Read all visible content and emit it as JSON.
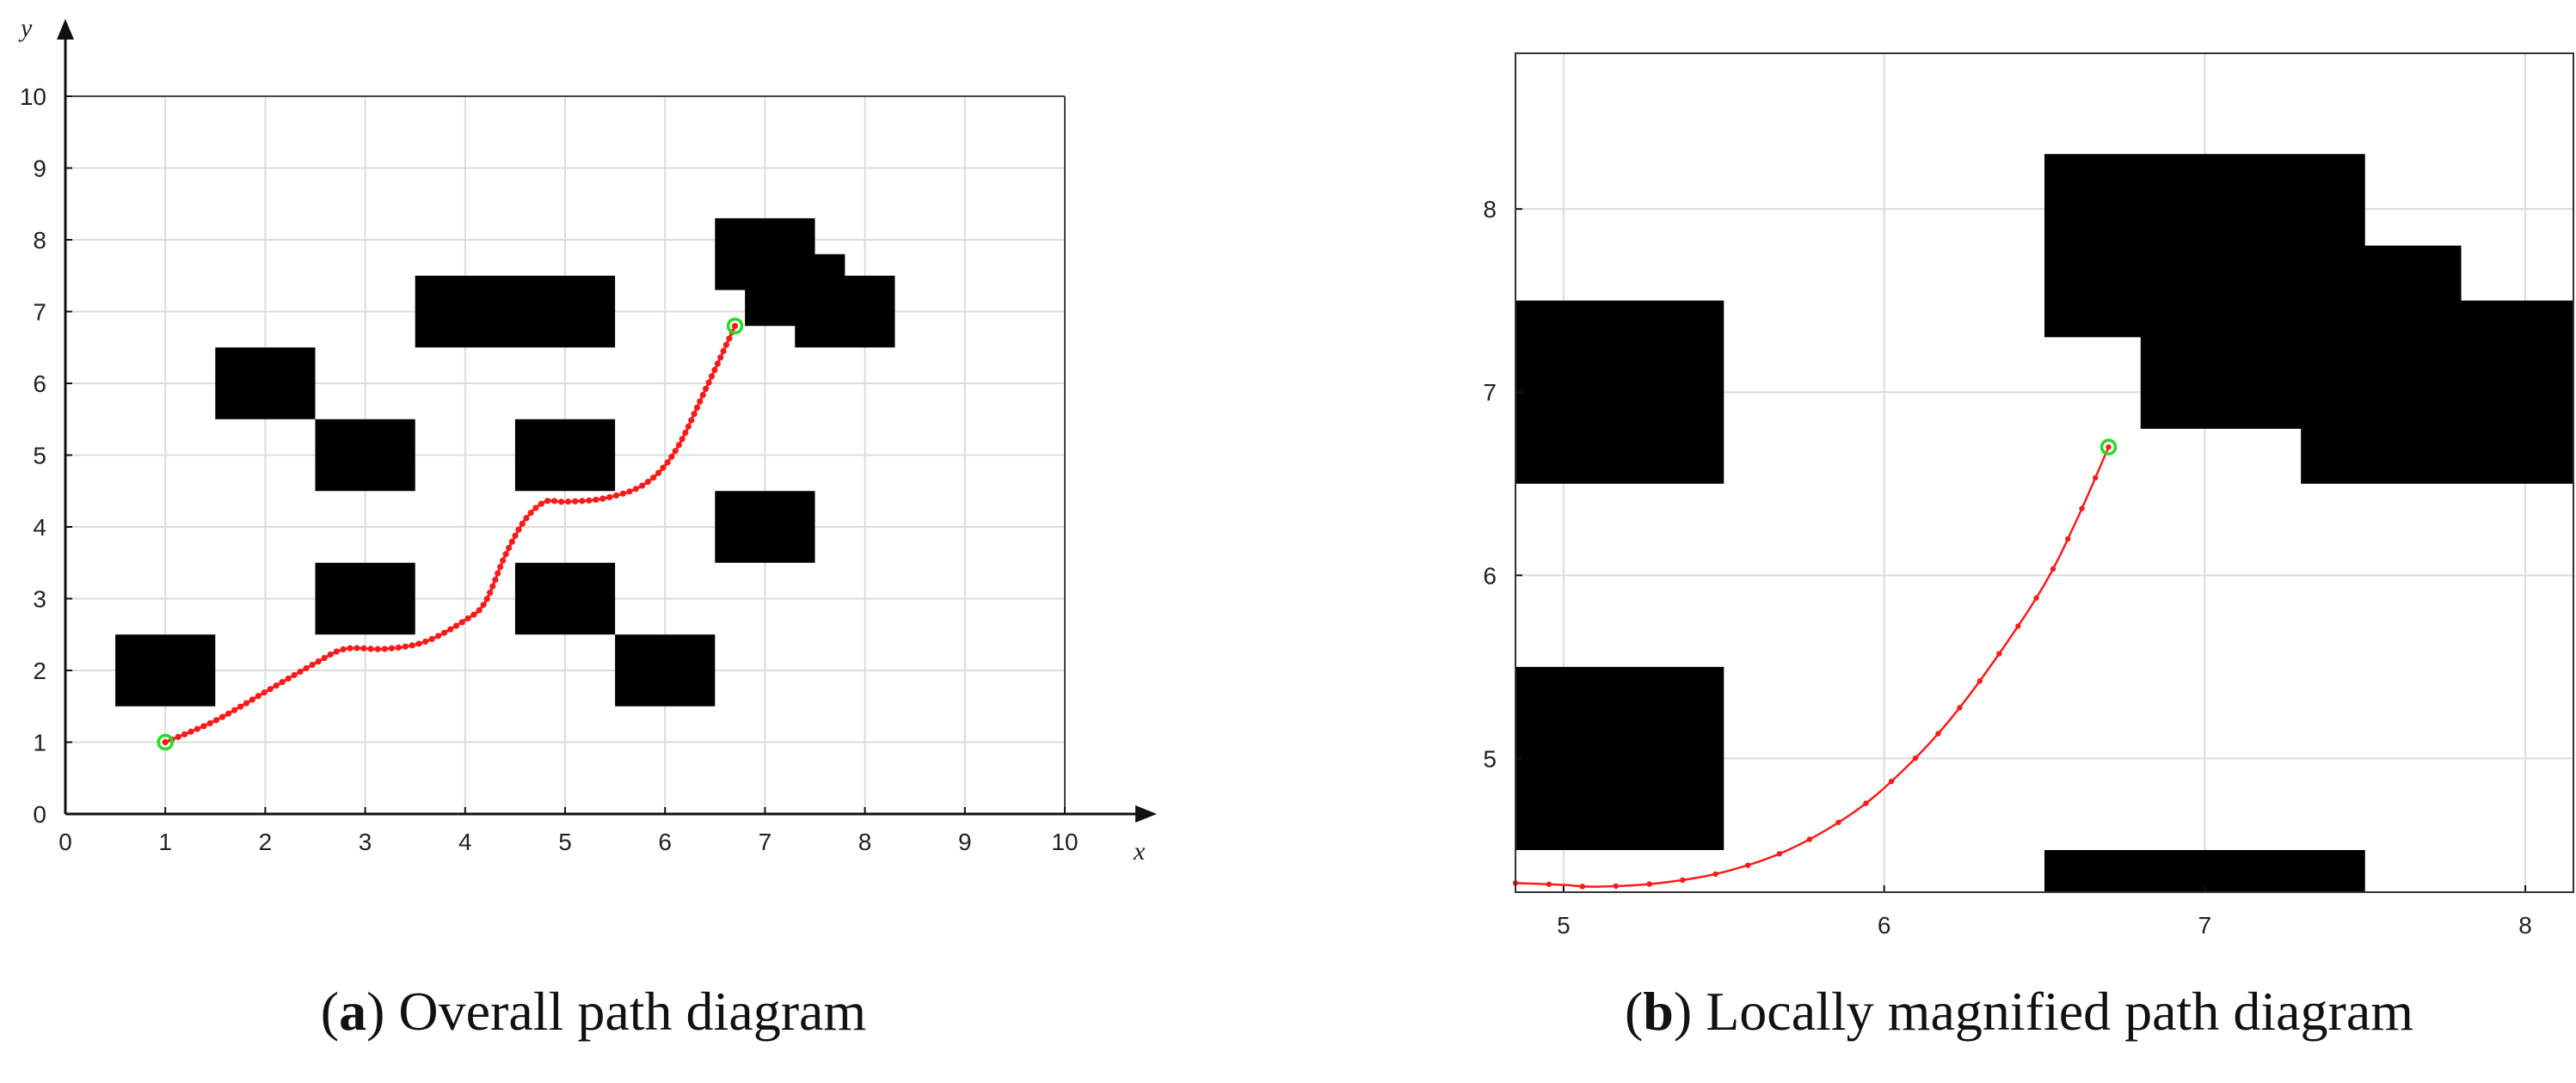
{
  "chart_data": [
    {
      "type": "scatter",
      "panel_id": "a",
      "caption_letter": "a",
      "caption_text": "Overall path diagram",
      "xlabel": "x",
      "ylabel": "y",
      "xlim": [
        0,
        10
      ],
      "ylim": [
        0,
        10
      ],
      "xticks": [
        "0",
        "1",
        "2",
        "3",
        "4",
        "5",
        "6",
        "7",
        "8",
        "9",
        "10"
      ],
      "yticks": [
        "0",
        "1",
        "2",
        "3",
        "4",
        "5",
        "6",
        "7",
        "8",
        "9",
        "10"
      ],
      "grid": true,
      "obstacles": [
        {
          "x0": 0.5,
          "x1": 1.5,
          "y0": 1.5,
          "y1": 2.5
        },
        {
          "x0": 2.5,
          "x1": 3.5,
          "y0": 2.5,
          "y1": 3.5
        },
        {
          "x0": 1.5,
          "x1": 2.5,
          "y0": 5.5,
          "y1": 6.5
        },
        {
          "x0": 2.5,
          "x1": 3.5,
          "y0": 4.5,
          "y1": 5.5
        },
        {
          "x0": 3.5,
          "x1": 5.5,
          "y0": 6.5,
          "y1": 7.5
        },
        {
          "x0": 4.5,
          "x1": 5.5,
          "y0": 4.5,
          "y1": 5.5
        },
        {
          "x0": 4.5,
          "x1": 5.5,
          "y0": 2.5,
          "y1": 3.5
        },
        {
          "x0": 5.5,
          "x1": 6.5,
          "y0": 1.5,
          "y1": 2.5
        },
        {
          "x0": 6.5,
          "x1": 7.5,
          "y0": 3.5,
          "y1": 4.5
        },
        {
          "x0": 6.5,
          "x1": 7.5,
          "y0": 7.3,
          "y1": 8.3
        },
        {
          "x0": 6.8,
          "x1": 7.8,
          "y0": 6.8,
          "y1": 7.8
        },
        {
          "x0": 7.3,
          "x1": 8.3,
          "y0": 6.5,
          "y1": 7.5
        }
      ],
      "path": [
        [
          1.0,
          1.0
        ],
        [
          1.5,
          1.3
        ],
        [
          2.0,
          1.7
        ],
        [
          2.5,
          2.1
        ],
        [
          2.8,
          2.3
        ],
        [
          3.2,
          2.3
        ],
        [
          3.6,
          2.4
        ],
        [
          4.0,
          2.7
        ],
        [
          4.2,
          2.95
        ],
        [
          4.4,
          3.6
        ],
        [
          4.6,
          4.1
        ],
        [
          4.8,
          4.35
        ],
        [
          5.0,
          4.35
        ],
        [
          5.4,
          4.4
        ],
        [
          5.8,
          4.6
        ],
        [
          6.1,
          5.05
        ],
        [
          6.4,
          5.9
        ],
        [
          6.7,
          6.8
        ]
      ],
      "start": [
        1.0,
        1.0
      ],
      "goal": [
        6.7,
        6.8
      ],
      "colors": {
        "path": "#ff1a1a",
        "marker": "#22dd22",
        "obstacle": "#000000",
        "grid": "#dcdcdc"
      }
    },
    {
      "type": "scatter",
      "panel_id": "b",
      "caption_letter": "b",
      "caption_text": "Locally magnified path diagram",
      "xlim": [
        4.85,
        8.15
      ],
      "ylim": [
        4.27,
        8.85
      ],
      "xticks": [
        "5",
        "6",
        "7",
        "8"
      ],
      "yticks": [
        "5",
        "6",
        "7",
        "8"
      ],
      "grid": true,
      "obstacles": [
        {
          "x0": 4.5,
          "x1": 5.5,
          "y0": 6.5,
          "y1": 7.5
        },
        {
          "x0": 4.5,
          "x1": 5.5,
          "y0": 4.5,
          "y1": 5.5
        },
        {
          "x0": 6.5,
          "x1": 7.5,
          "y0": 4.0,
          "y1": 4.5
        },
        {
          "x0": 6.5,
          "x1": 7.5,
          "y0": 7.3,
          "y1": 8.3
        },
        {
          "x0": 6.8,
          "x1": 7.8,
          "y0": 6.8,
          "y1": 7.8
        },
        {
          "x0": 7.3,
          "x1": 8.3,
          "y0": 6.5,
          "y1": 7.5
        }
      ],
      "path": [
        [
          4.85,
          4.32
        ],
        [
          5.0,
          4.31
        ],
        [
          5.1,
          4.3
        ],
        [
          5.3,
          4.32
        ],
        [
          5.5,
          4.38
        ],
        [
          5.7,
          4.5
        ],
        [
          5.9,
          4.7
        ],
        [
          6.05,
          4.92
        ],
        [
          6.2,
          5.2
        ],
        [
          6.35,
          5.55
        ],
        [
          6.5,
          5.95
        ],
        [
          6.6,
          6.3
        ],
        [
          6.7,
          6.7
        ]
      ],
      "goal": [
        6.7,
        6.7
      ],
      "colors": {
        "path": "#ff1a1a",
        "marker": "#22dd22",
        "obstacle": "#000000",
        "grid": "#dcdcdc"
      }
    }
  ]
}
